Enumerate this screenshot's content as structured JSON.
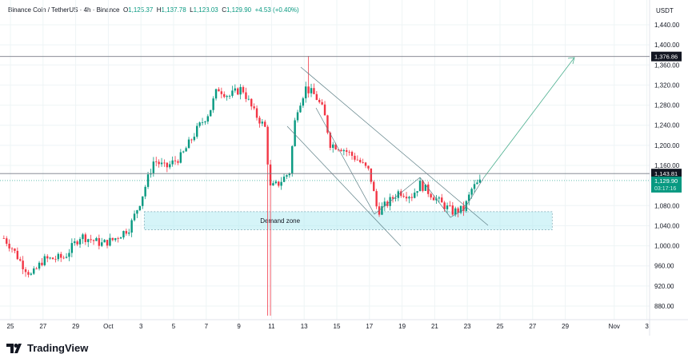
{
  "header": {
    "symbol": "Binance Coin / TetherUS · 4h · Binance",
    "o_label": "O",
    "o": "1,125.37",
    "h_label": "H",
    "h": "1,137.78",
    "l_label": "L",
    "l": "1,123.03",
    "c_label": "C",
    "c": "1,129.90",
    "change": "+4.53 (+0.40%)"
  },
  "logo": {
    "text": "TradingView"
  },
  "colors": {
    "up": "#089981",
    "down": "#f23645",
    "dark": "#131722",
    "zone": "#b2ebf2"
  },
  "chart_data": {
    "type": "candlestick",
    "currency": "USDT",
    "ylim": [
      860,
      1460
    ],
    "yticks": [
      "1,440.00",
      "1,400.00",
      "1,360.00",
      "1,320.00",
      "1,280.00",
      "1,240.00",
      "1,200.00",
      "1,160.00",
      "1,080.00",
      "1,040.00",
      "1,000.00",
      "960.00",
      "920.00",
      "880.00"
    ],
    "ytick_values": [
      1440,
      1400,
      1360,
      1320,
      1280,
      1240,
      1200,
      1160,
      1080,
      1040,
      1000,
      960,
      920,
      880
    ],
    "xticks": [
      "25",
      "27",
      "29",
      "Oct",
      "3",
      "5",
      "7",
      "9",
      "11",
      "13",
      "15",
      "17",
      "19",
      "21",
      "23",
      "25",
      "27",
      "29",
      "Nov",
      "3"
    ],
    "xtick_days": [
      0,
      2,
      4,
      6,
      8,
      10,
      12,
      14,
      16,
      18,
      20,
      22,
      24,
      26,
      28,
      30,
      32,
      34,
      37,
      39
    ],
    "price_path_days": [
      -0.4,
      0.1,
      0.7,
      1.3,
      2,
      3.3,
      4.3,
      5.6,
      6.3,
      7.3,
      8,
      8.8,
      9.5,
      10.5,
      11.5,
      12.2,
      12.7,
      13.4,
      14.2,
      14.9,
      15.6,
      15.9,
      16.4,
      17.1,
      17.5,
      18.1,
      18.7,
      19.2,
      19.6,
      20.3,
      21.3,
      22,
      22.5,
      23.1,
      23.8,
      24.6,
      25.1,
      25.6,
      26.4,
      27.1,
      27.8,
      28.3,
      28.9
    ],
    "price_path": [
      1015,
      996,
      964,
      940,
      972,
      977,
      1020,
      1004,
      1012,
      1036,
      1092,
      1171,
      1155,
      1179,
      1235,
      1267,
      1314,
      1298,
      1314,
      1267,
      1235,
      1115,
      1123,
      1147,
      1267,
      1314,
      1298,
      1267,
      1203,
      1195,
      1171,
      1147,
      1068,
      1084,
      1108,
      1100,
      1123,
      1108,
      1084,
      1068,
      1073,
      1115,
      1130
    ],
    "wick_extremes": [
      {
        "day": 15.85,
        "low": 861
      },
      {
        "day": 18.2,
        "high": 1378
      }
    ],
    "last_price": "1,129.90",
    "countdown": "03:17:16",
    "h_lines": [
      {
        "value": 1376.86,
        "label": "1,376.86"
      },
      {
        "value": 1143.81,
        "label": "1,143.81"
      }
    ],
    "demand_zone": {
      "label": "Demand zone",
      "top": 1068,
      "bottom": 1032,
      "from_day": 8.2,
      "to_day": 33.2
    }
  }
}
